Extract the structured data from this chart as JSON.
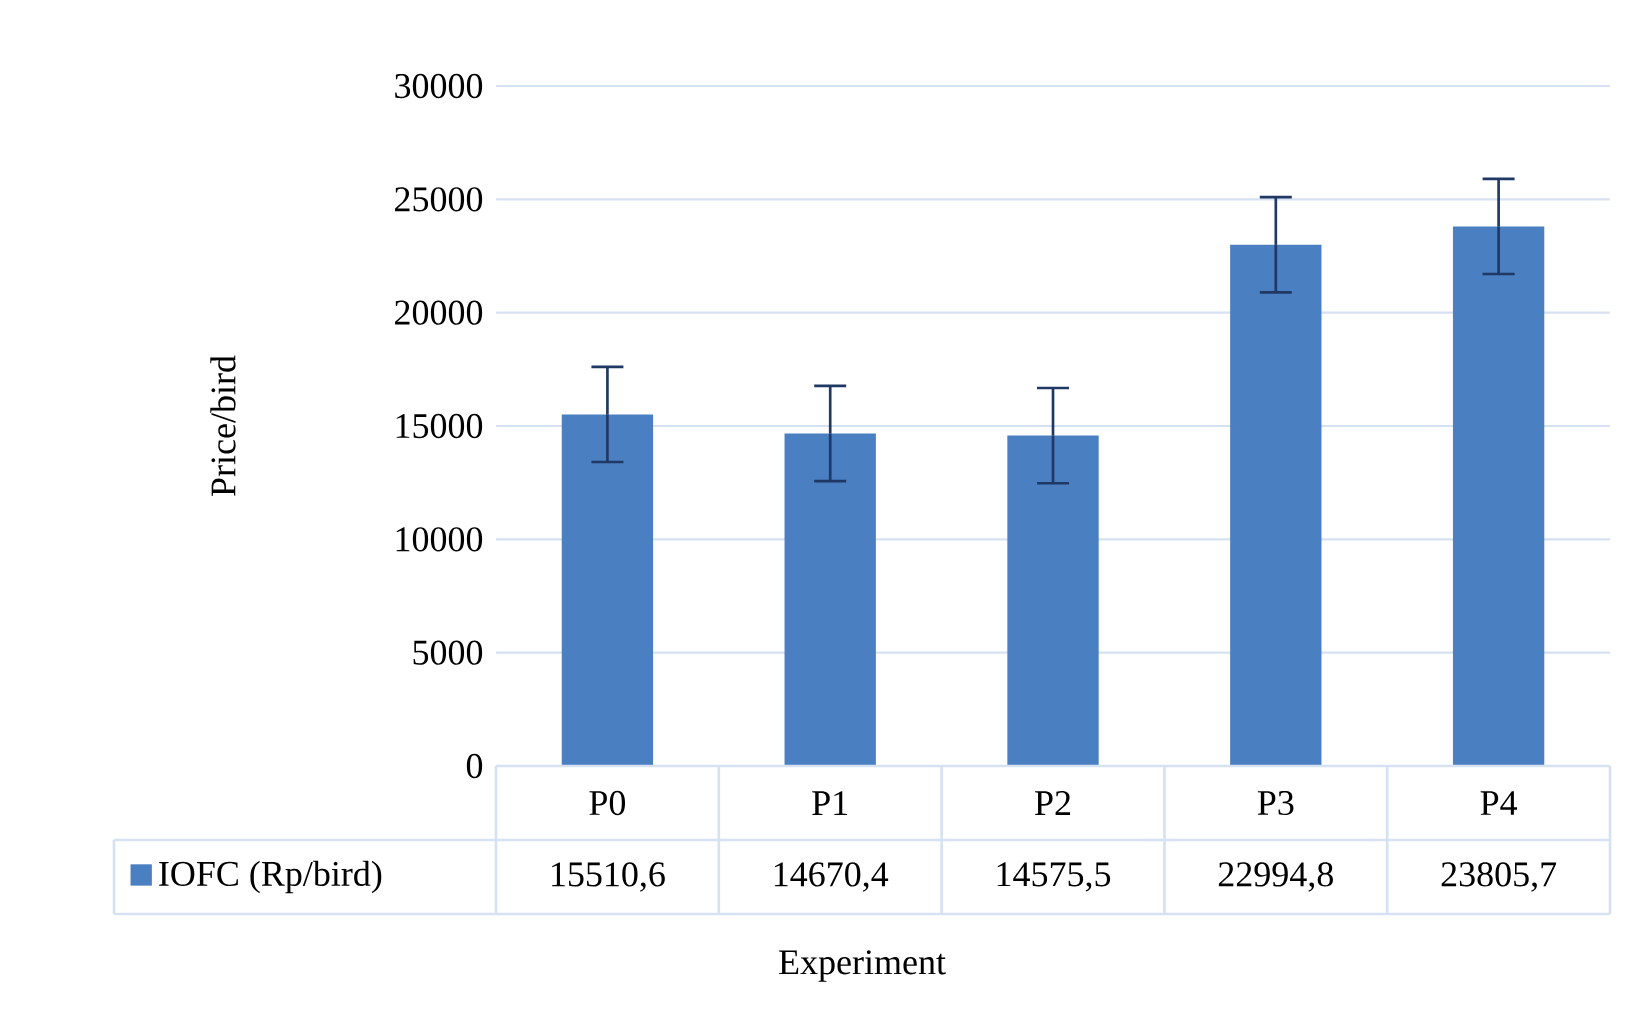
{
  "chart_data": {
    "type": "bar",
    "ylabel": "Price/bird",
    "xlabel": "Experiment",
    "categories": [
      "P0",
      "P1",
      "P2",
      "P3",
      "P4"
    ],
    "series": [
      {
        "name": "IOFC (Rp/bird)",
        "color": "#4a7fc1",
        "values": [
          15510.6,
          14670.4,
          14575.5,
          22994.8,
          23805.7
        ],
        "value_labels": [
          "15510,6",
          "14670,4",
          "14575,5",
          "22994,8",
          "23805,7"
        ],
        "errors": [
          2100,
          2100,
          2100,
          2100,
          2100
        ]
      }
    ],
    "ylim": [
      0,
      30000
    ],
    "yticks": [
      0,
      5000,
      10000,
      15000,
      20000,
      25000,
      30000
    ],
    "grid": "y",
    "legend": "bottom"
  }
}
